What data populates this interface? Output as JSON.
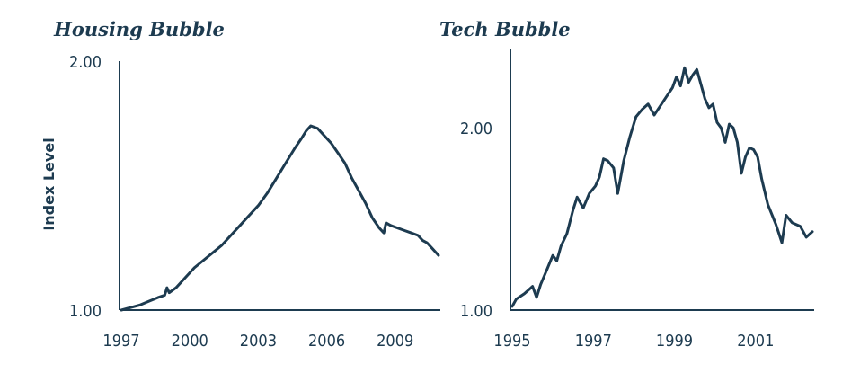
{
  "colors": {
    "line": "#1d3b50",
    "text": "#1d3b50",
    "axis": "#1d3b50"
  },
  "chart_data": [
    {
      "type": "line",
      "title": "Housing Bubble",
      "ylabel": "Index Level",
      "xlabel": "",
      "xlim": [
        1997,
        2010.9
      ],
      "ylim": [
        1.0,
        2.0
      ],
      "xticks": [
        1997,
        2000,
        2003,
        2006,
        2009
      ],
      "xtick_labels": [
        "1997",
        "2000",
        "2003",
        "2006",
        "2009"
      ],
      "yticks": [
        1.0,
        2.0
      ],
      "ytick_labels": [
        "1.00",
        "2.00"
      ],
      "grid": false,
      "series": [
        {
          "x": [
            1997.0,
            1997.4,
            1997.8,
            1998.2,
            1998.6,
            1998.9,
            1999.0,
            1999.1,
            1999.4,
            1999.8,
            2000.2,
            2000.6,
            2001.0,
            2001.4,
            2001.8,
            2002.2,
            2002.6,
            2003.0,
            2003.4,
            2003.8,
            2004.2,
            2004.6,
            2004.9,
            2005.1,
            2005.3,
            2005.6,
            2005.9,
            2006.2,
            2006.5,
            2006.8,
            2007.1,
            2007.4,
            2007.7,
            2008.0,
            2008.3,
            2008.5,
            2008.6,
            2008.8,
            2009.1,
            2009.4,
            2009.7,
            2010.0,
            2010.2,
            2010.4,
            2010.6,
            2010.9
          ],
          "y": [
            1.0,
            1.01,
            1.02,
            1.035,
            1.05,
            1.06,
            1.09,
            1.07,
            1.09,
            1.13,
            1.17,
            1.2,
            1.23,
            1.26,
            1.3,
            1.34,
            1.38,
            1.42,
            1.47,
            1.53,
            1.59,
            1.65,
            1.69,
            1.72,
            1.74,
            1.73,
            1.7,
            1.67,
            1.63,
            1.59,
            1.53,
            1.48,
            1.43,
            1.37,
            1.33,
            1.31,
            1.35,
            1.34,
            1.33,
            1.32,
            1.31,
            1.3,
            1.28,
            1.27,
            1.25,
            1.22
          ]
        }
      ]
    },
    {
      "type": "line",
      "title": "Tech Bubble",
      "ylabel": "",
      "xlabel": "",
      "xlim": [
        1995,
        2002.4
      ],
      "ylim": [
        1.0,
        2.43
      ],
      "xticks": [
        1995,
        1997,
        1999,
        2001
      ],
      "xtick_labels": [
        "1995",
        "1997",
        "1999",
        "2001"
      ],
      "yticks": [
        1.0,
        2.0
      ],
      "ytick_labels": [
        "1.00",
        "2.00"
      ],
      "grid": false,
      "series": [
        {
          "x": [
            1995.0,
            1995.1,
            1995.3,
            1995.5,
            1995.6,
            1995.7,
            1995.85,
            1996.0,
            1996.1,
            1996.2,
            1996.35,
            1996.5,
            1996.6,
            1996.75,
            1996.9,
            1997.05,
            1997.15,
            1997.25,
            1997.35,
            1997.5,
            1997.6,
            1997.75,
            1997.9,
            1998.05,
            1998.2,
            1998.35,
            1998.5,
            1998.65,
            1998.8,
            1998.95,
            1999.05,
            1999.15,
            1999.25,
            1999.35,
            1999.45,
            1999.55,
            1999.65,
            1999.75,
            1999.85,
            1999.95,
            2000.05,
            2000.15,
            2000.25,
            2000.35,
            2000.45,
            2000.55,
            2000.65,
            2000.75,
            2000.85,
            2000.95,
            2001.05,
            2001.15,
            2001.3,
            2001.5,
            2001.65,
            2001.75,
            2001.9,
            2002.1,
            2002.25,
            2002.4
          ],
          "y": [
            1.02,
            1.06,
            1.09,
            1.13,
            1.07,
            1.14,
            1.22,
            1.3,
            1.27,
            1.35,
            1.42,
            1.55,
            1.62,
            1.56,
            1.64,
            1.68,
            1.73,
            1.83,
            1.82,
            1.78,
            1.64,
            1.82,
            1.95,
            2.06,
            2.1,
            2.13,
            2.07,
            2.12,
            2.17,
            2.22,
            2.28,
            2.23,
            2.33,
            2.25,
            2.29,
            2.32,
            2.24,
            2.16,
            2.11,
            2.13,
            2.03,
            2.0,
            1.92,
            2.02,
            2.0,
            1.92,
            1.75,
            1.84,
            1.89,
            1.88,
            1.84,
            1.72,
            1.58,
            1.47,
            1.37,
            1.52,
            1.48,
            1.46,
            1.4,
            1.43
          ]
        }
      ]
    }
  ]
}
